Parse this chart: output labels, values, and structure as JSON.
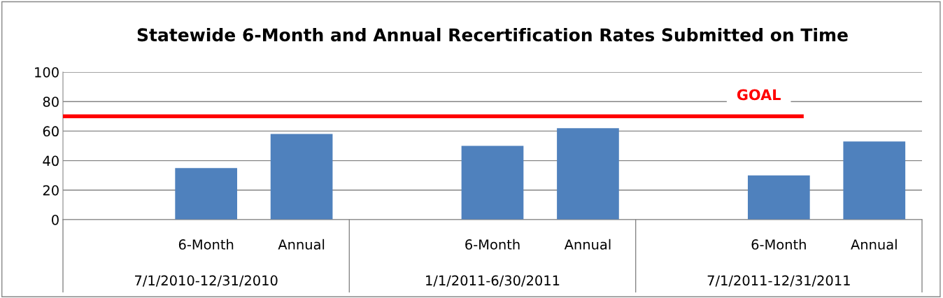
{
  "chart_data": {
    "type": "bar",
    "title": "Statewide 6-Month and Annual Recertification Rates Submitted on Time",
    "categories": [
      null,
      "6-Month",
      "Annual",
      null,
      "6-Month",
      "Annual",
      null,
      "6-Month",
      "Annual"
    ],
    "values": [
      null,
      35,
      58,
      null,
      50,
      62,
      null,
      30,
      53
    ],
    "color": "#4f81bd",
    "ylim": [
      0,
      100
    ],
    "yticks": [
      0,
      20,
      40,
      60,
      80,
      100
    ],
    "grid": "y",
    "ref_lines": [
      {
        "axis": "y",
        "value": 70,
        "label": "GOAL",
        "color": "#ff0000"
      }
    ],
    "annotations": [
      "7/1/2010-12/31/2010",
      "1/1/2011-6/30/2011",
      "7/1/2011-12/31/2011"
    ]
  }
}
